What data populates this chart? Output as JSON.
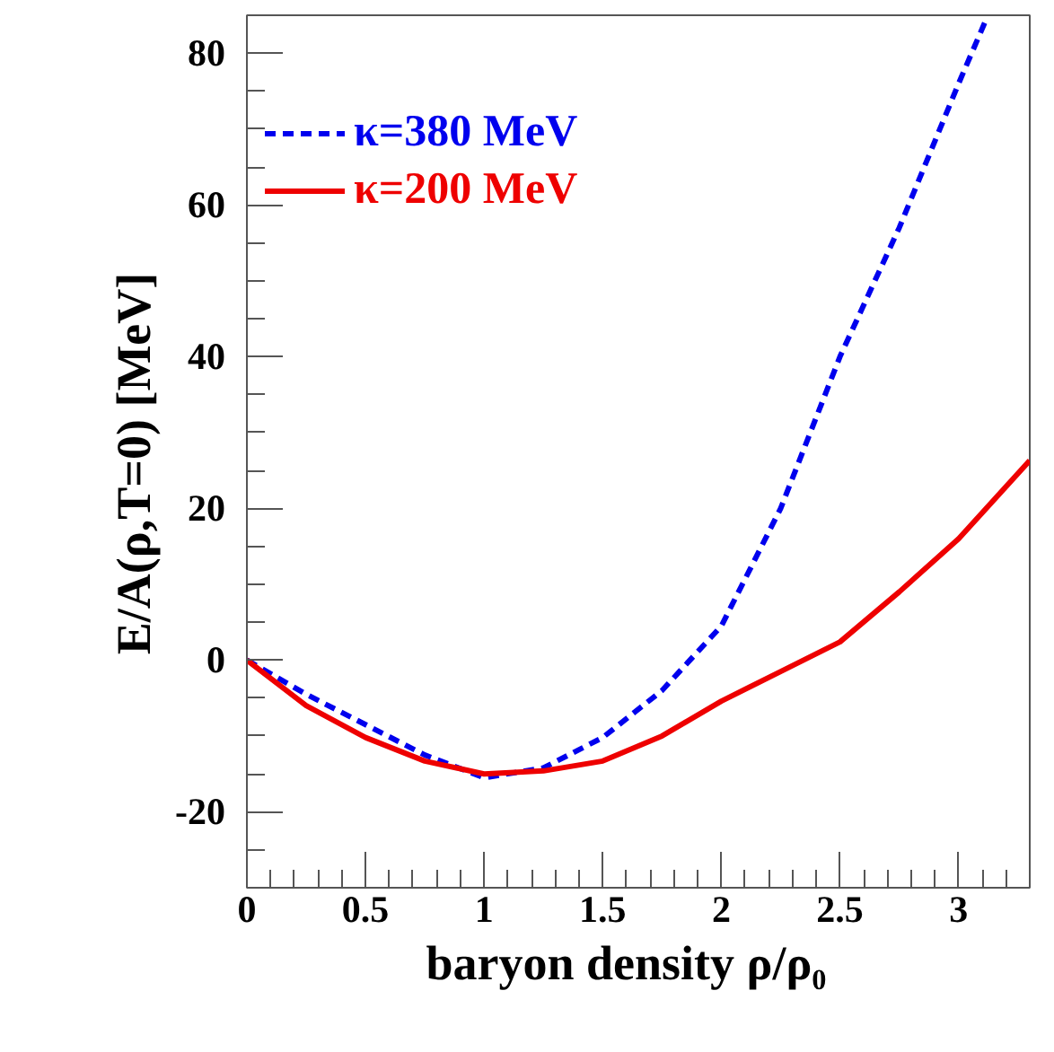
{
  "chart_data": {
    "type": "line",
    "xlabel": "baryon density   ρ/ρ₀",
    "ylabel": "E/A(ρ,T=0)   [MeV]",
    "xlim": [
      0,
      3.3
    ],
    "ylim": [
      -30,
      85
    ],
    "xticks": [
      0,
      0.5,
      1,
      1.5,
      2,
      2.5,
      3
    ],
    "yticks": [
      -20,
      0,
      20,
      40,
      60,
      80
    ],
    "grid": false,
    "legend": "top left",
    "marker": "none",
    "series": [
      {
        "name": "κ=380 MeV",
        "color": "#0000ee",
        "line_style": "dashed",
        "x": [
          0,
          0.25,
          0.5,
          0.75,
          1,
          1.25,
          1.5,
          1.75,
          2,
          2.25,
          2.5,
          2.75,
          3,
          3.11
        ],
        "values": [
          0,
          -4.5,
          -8.5,
          -12.5,
          -15.5,
          -14.2,
          -10.2,
          -4,
          4.5,
          20,
          40,
          57,
          76,
          84
        ]
      },
      {
        "name": "κ=200 MeV",
        "color": "#ee0000",
        "line_style": "solid",
        "x": [
          0,
          0.25,
          0.5,
          0.75,
          1,
          1.25,
          1.5,
          1.75,
          2,
          2.25,
          2.5,
          2.75,
          3,
          3.3
        ],
        "values": [
          0,
          -6,
          -10.2,
          -13.3,
          -15,
          -14.6,
          -13.3,
          -10,
          -5.4,
          -1.5,
          2.4,
          9,
          16,
          26.3
        ]
      }
    ]
  }
}
